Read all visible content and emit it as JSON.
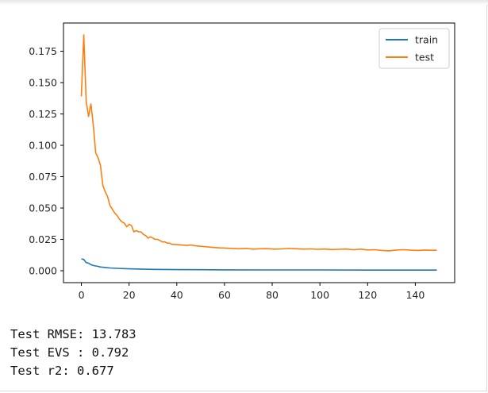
{
  "chart_data": {
    "type": "line",
    "xlim": [
      -7.5,
      156.5
    ],
    "ylim": [
      -0.0095,
      0.1975
    ],
    "xticks": [
      0,
      20,
      40,
      60,
      80,
      100,
      120,
      140
    ],
    "yticks": [
      0.0,
      0.025,
      0.05,
      0.075,
      0.1,
      0.125,
      0.15,
      0.175
    ],
    "ytick_labels": [
      "0.000",
      "0.025",
      "0.050",
      "0.075",
      "0.100",
      "0.125",
      "0.150",
      "0.175"
    ],
    "legend_position": "top-right",
    "grid": false,
    "series": [
      {
        "name": "train",
        "color": "#1f77b4",
        "x": [
          0,
          1,
          2,
          3,
          4,
          5,
          6,
          7,
          8,
          10,
          12,
          15,
          20,
          25,
          30,
          40,
          50,
          60,
          80,
          100,
          120,
          140,
          149
        ],
        "y": [
          0.0095,
          0.009,
          0.0065,
          0.006,
          0.0048,
          0.0042,
          0.0038,
          0.0035,
          0.003,
          0.0026,
          0.0022,
          0.0019,
          0.0015,
          0.0013,
          0.0011,
          0.0009,
          0.0008,
          0.0007,
          0.0006,
          0.0006,
          0.0005,
          0.0005,
          0.0005
        ]
      },
      {
        "name": "test",
        "color": "#ff7f0e",
        "x": [
          0,
          1,
          2,
          3,
          4,
          5,
          6,
          7,
          8,
          9,
          10,
          11,
          12,
          13,
          14,
          15,
          16,
          17,
          18,
          19,
          20,
          21,
          22,
          23,
          24,
          25,
          26,
          27,
          28,
          29,
          30,
          31,
          32,
          33,
          34,
          35,
          36,
          37,
          38,
          39,
          40,
          42,
          44,
          46,
          48,
          50,
          52,
          54,
          56,
          58,
          60,
          63,
          66,
          69,
          72,
          75,
          78,
          81,
          84,
          87,
          90,
          93,
          96,
          99,
          102,
          105,
          108,
          111,
          114,
          117,
          120,
          123,
          126,
          129,
          132,
          135,
          138,
          141,
          144,
          147,
          149
        ],
        "y": [
          0.139,
          0.188,
          0.135,
          0.123,
          0.133,
          0.116,
          0.094,
          0.09,
          0.084,
          0.068,
          0.063,
          0.059,
          0.052,
          0.049,
          0.046,
          0.044,
          0.041,
          0.039,
          0.038,
          0.035,
          0.037,
          0.036,
          0.031,
          0.032,
          0.031,
          0.031,
          0.029,
          0.028,
          0.026,
          0.027,
          0.026,
          0.025,
          0.025,
          0.024,
          0.023,
          0.023,
          0.022,
          0.022,
          0.021,
          0.021,
          0.0208,
          0.0205,
          0.0202,
          0.0205,
          0.0198,
          0.0195,
          0.0192,
          0.0188,
          0.0185,
          0.0182,
          0.0181,
          0.0178,
          0.0175,
          0.0178,
          0.0172,
          0.0175,
          0.0176,
          0.0172,
          0.0174,
          0.0177,
          0.0175,
          0.0172,
          0.0174,
          0.0171,
          0.0173,
          0.0169,
          0.0171,
          0.0173,
          0.0168,
          0.0172,
          0.0166,
          0.0168,
          0.0162,
          0.0159,
          0.0165,
          0.0168,
          0.0164,
          0.0162,
          0.0165,
          0.0163,
          0.0163
        ]
      }
    ]
  },
  "output_lines": {
    "rmse": "Test RMSE: 13.783",
    "evs": "Test EVS : 0.792",
    "r2": "Test r2: 0.677"
  }
}
